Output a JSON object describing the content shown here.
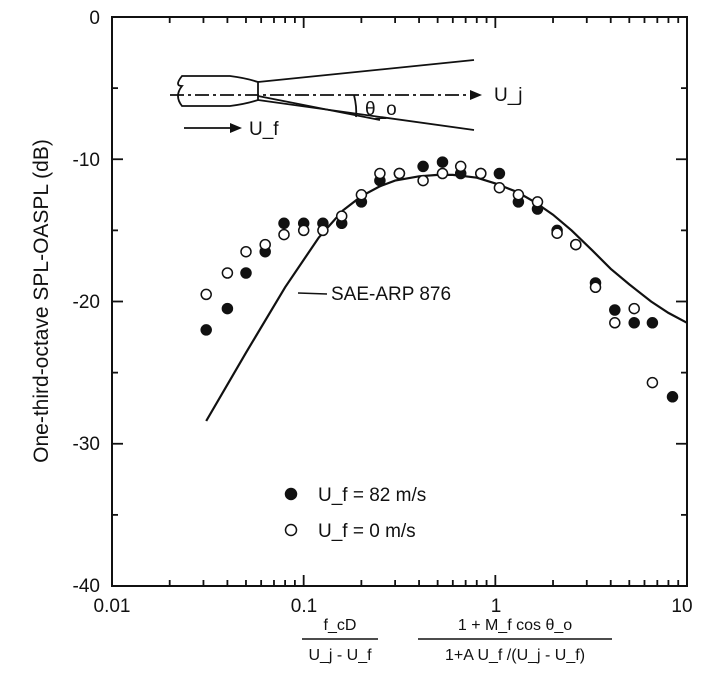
{
  "chart_data": {
    "type": "scatter",
    "ylabel": "One-third-octave SPL-OASPL (dB)",
    "x_scale": "log",
    "xlim": [
      0.01,
      10
    ],
    "ylim": [
      -40,
      0
    ],
    "x_ticks": [
      "0.01",
      "0.1",
      "1",
      "10"
    ],
    "y_ticks": [
      "0",
      "-10",
      "-20",
      "-30",
      "-40"
    ],
    "xlabel": {
      "frac1_num": "f_cD",
      "frac1_den": "U_j - U_f",
      "frac2_num": "1 + M_f cos θ_o",
      "frac2_den": "1+A U_f /(U_j - U_f)"
    },
    "curve_label": "SAE-ARP 876",
    "legend": [
      "U_f = 82 m/s",
      "U_f = 0 m/s"
    ],
    "inset": {
      "jet_label": "U_j",
      "flight_label": "U_f",
      "angle_label": "θ_o"
    },
    "series": [
      {
        "name": "U_f = 82 m/s",
        "marker": "filled",
        "x": [
          0.031,
          0.04,
          0.05,
          0.063,
          0.079,
          0.1,
          0.126,
          0.158,
          0.2,
          0.25,
          0.316,
          0.42,
          0.53,
          0.66,
          0.84,
          1.05,
          1.32,
          1.66,
          2.1,
          2.63,
          3.33,
          4.2,
          5.3,
          6.6,
          8.4
        ],
        "y": [
          -22,
          -20.5,
          -18,
          -16.5,
          -14.5,
          -14.5,
          -14.5,
          -14.5,
          -13,
          -11.5,
          -11,
          -10.5,
          -10.2,
          -11,
          -11,
          -11,
          -13,
          -13.5,
          -15,
          -16,
          -18.7,
          -20.6,
          -21.5,
          -21.5,
          -26.7
        ]
      },
      {
        "name": "U_f = 0 m/s",
        "marker": "open",
        "x": [
          0.031,
          0.04,
          0.05,
          0.063,
          0.079,
          0.1,
          0.126,
          0.158,
          0.2,
          0.25,
          0.316,
          0.42,
          0.53,
          0.66,
          0.84,
          1.05,
          1.32,
          1.66,
          2.1,
          2.63,
          3.33,
          4.2,
          5.3,
          6.6
        ],
        "y": [
          -19.5,
          -18,
          -16.5,
          -16,
          -15.3,
          -15,
          -15,
          -14,
          -12.5,
          -11,
          -11,
          -11.5,
          -11,
          -10.5,
          -11,
          -12,
          -12.5,
          -13,
          -15.2,
          -16,
          -19,
          -21.5,
          -20.5,
          -25.7
        ]
      },
      {
        "name": "SAE-ARP 876",
        "marker": "line",
        "x": [
          0.031,
          0.05,
          0.08,
          0.12,
          0.16,
          0.2,
          0.25,
          0.3,
          0.4,
          0.5,
          0.6,
          0.7,
          0.8,
          1.0,
          1.3,
          1.6,
          2.0,
          2.5,
          3.2,
          4.0,
          5.0,
          6.5,
          8.0,
          10.0
        ],
        "y": [
          -28.4,
          -23.6,
          -19.0,
          -15.5,
          -13.6,
          -12.6,
          -11.9,
          -11.5,
          -11.2,
          -11.1,
          -11.1,
          -11.2,
          -11.3,
          -11.7,
          -12.3,
          -13.0,
          -13.9,
          -15.0,
          -16.4,
          -17.7,
          -18.8,
          -20.0,
          -20.8,
          -21.5
        ]
      }
    ]
  }
}
